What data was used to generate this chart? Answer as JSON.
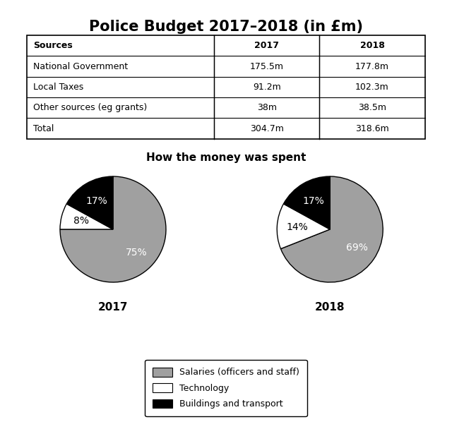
{
  "title": "Police Budget 2017–2018 (in £m)",
  "table": {
    "headers": [
      "Sources",
      "2017",
      "2018"
    ],
    "rows": [
      [
        "National Government",
        "175.5m",
        "177.8m"
      ],
      [
        "Local Taxes",
        "91.2m",
        "102.3m"
      ],
      [
        "Other sources (eg grants)",
        "38m",
        "38.5m"
      ],
      [
        "Total",
        "304.7m",
        "318.6m"
      ]
    ]
  },
  "pie_title": "How the money was spent",
  "pie_2017": {
    "label": "2017",
    "values": [
      75,
      8,
      17
    ],
    "pct_labels": [
      "75%",
      "8%",
      "17%"
    ],
    "colors": [
      "#a0a0a0",
      "#ffffff",
      "#000000"
    ]
  },
  "pie_2018": {
    "label": "2018",
    "values": [
      69,
      14,
      17
    ],
    "pct_labels": [
      "69%",
      "14%",
      "17%"
    ],
    "colors": [
      "#a0a0a0",
      "#ffffff",
      "#000000"
    ]
  },
  "legend_labels": [
    "Salaries (officers and staff)",
    "Technology",
    "Buildings and transport"
  ],
  "legend_colors": [
    "#a0a0a0",
    "#ffffff",
    "#000000"
  ],
  "background_color": "#ffffff",
  "title_fontsize": 15,
  "table_fontsize": 9,
  "pie_label_fontsize": 10,
  "pie_year_fontsize": 11,
  "legend_fontsize": 9,
  "pie_title_fontsize": 11
}
